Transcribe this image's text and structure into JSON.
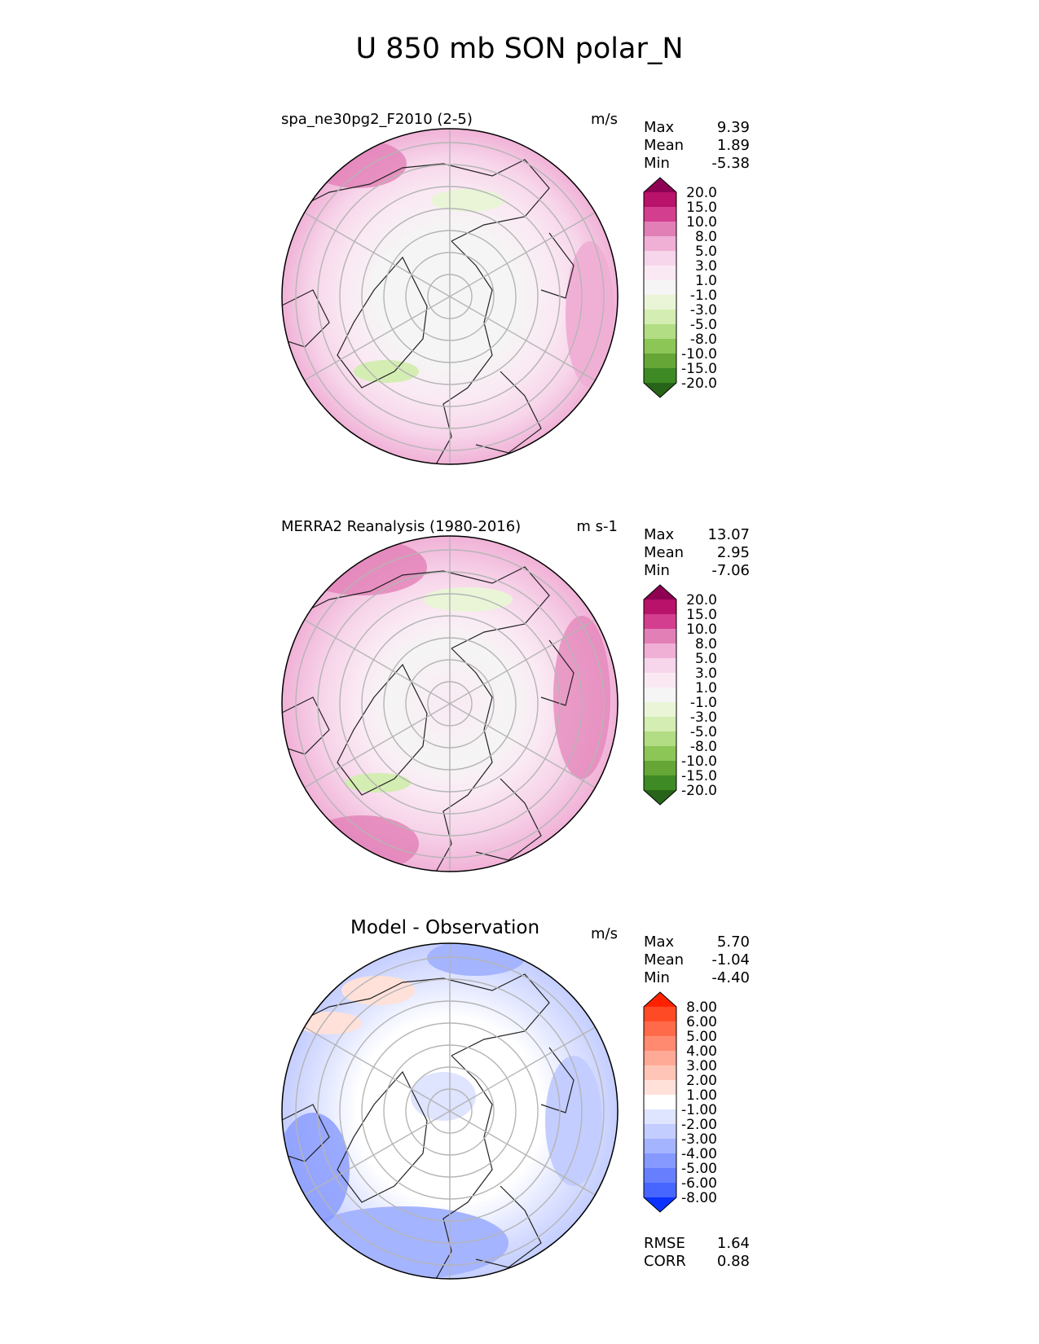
{
  "title": "U 850 mb SON polar_N",
  "panels": [
    {
      "title": "spa_ne30pg2_F2010 (2-5)",
      "units": "m/s",
      "stats": [
        {
          "label": "Max",
          "value": "9.39"
        },
        {
          "label": "Mean",
          "value": "1.89"
        },
        {
          "label": "Min",
          "value": "-5.38"
        }
      ],
      "colorbar": {
        "ticks": [
          "20.0",
          "15.0",
          "10.0",
          "8.0",
          "5.0",
          "3.0",
          "1.0",
          "-1.0",
          "-3.0",
          "-5.0",
          "-8.0",
          "-10.0",
          "-15.0",
          "-20.0"
        ],
        "colors": [
          "#8e0152",
          "#b8126a",
          "#d43e8f",
          "#e27fb7",
          "#f0b0d6",
          "#f7d5ea",
          "#fae9f3",
          "#f5f5f5",
          "#eaf5d8",
          "#d4edb2",
          "#b2dd84",
          "#8cc657",
          "#65a636",
          "#3e8a24",
          "#276419"
        ]
      }
    },
    {
      "title": "MERRA2 Reanalysis (1980-2016)",
      "units": "m s-1",
      "stats": [
        {
          "label": "Max",
          "value": "13.07"
        },
        {
          "label": "Mean",
          "value": "2.95"
        },
        {
          "label": "Min",
          "value": "-7.06"
        }
      ],
      "colorbar": {
        "ticks": [
          "20.0",
          "15.0",
          "10.0",
          "8.0",
          "5.0",
          "3.0",
          "1.0",
          "-1.0",
          "-3.0",
          "-5.0",
          "-8.0",
          "-10.0",
          "-15.0",
          "-20.0"
        ],
        "colors": [
          "#8e0152",
          "#b8126a",
          "#d43e8f",
          "#e27fb7",
          "#f0b0d6",
          "#f7d5ea",
          "#fae9f3",
          "#f5f5f5",
          "#eaf5d8",
          "#d4edb2",
          "#b2dd84",
          "#8cc657",
          "#65a636",
          "#3e8a24",
          "#276419"
        ]
      }
    },
    {
      "title": "Model - Observation",
      "units": "m/s",
      "stats": [
        {
          "label": "Max",
          "value": "5.70"
        },
        {
          "label": "Mean",
          "value": "-1.04"
        },
        {
          "label": "Min",
          "value": "-4.40"
        }
      ],
      "colorbar": {
        "ticks": [
          "8.00",
          "6.00",
          "5.00",
          "4.00",
          "3.00",
          "2.00",
          "1.00",
          "-1.00",
          "-2.00",
          "-3.00",
          "-4.00",
          "-5.00",
          "-6.00",
          "-8.00"
        ],
        "colors": [
          "#ff2200",
          "#ff4a26",
          "#ff6b4a",
          "#ff8a70",
          "#ffaa96",
          "#ffc6b8",
          "#ffe1d9",
          "#ffffff",
          "#dfe4ff",
          "#c3cdff",
          "#a5b4ff",
          "#8699ff",
          "#677ffe",
          "#4766ff",
          "#0b32ff"
        ]
      },
      "metrics": [
        {
          "label": "RMSE",
          "value": "1.64"
        },
        {
          "label": "CORR",
          "value": "0.88"
        }
      ]
    }
  ]
}
